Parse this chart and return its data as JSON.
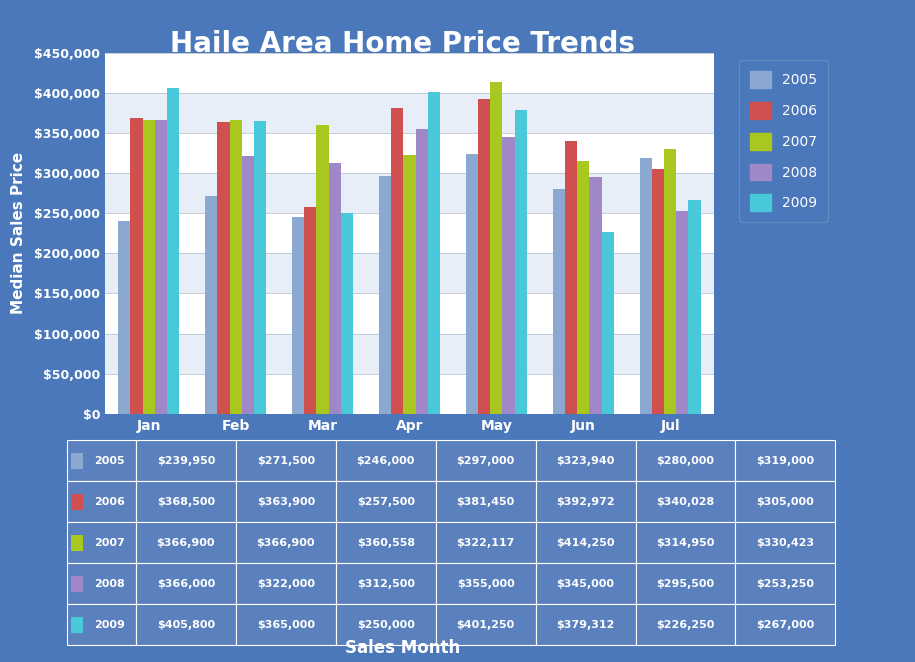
{
  "title": "Haile Area Home Price Trends",
  "xlabel": "Sales Month",
  "ylabel": "Median Sales Price",
  "background_color": "#4A78BB",
  "plot_bg_color": "#FFFFFF",
  "months": [
    "Jan",
    "Feb",
    "Mar",
    "Apr",
    "May",
    "Jun",
    "Jul"
  ],
  "years": [
    "2005",
    "2006",
    "2007",
    "2008",
    "2009"
  ],
  "bar_colors": [
    "#8BA8D0",
    "#D05050",
    "#A8C820",
    "#A088C8",
    "#48C8D8"
  ],
  "legend_colors": [
    "#8BA8D0",
    "#D05050",
    "#A8C820",
    "#A088C8",
    "#48C8D8"
  ],
  "data": {
    "2005": [
      239950,
      271500,
      246000,
      297000,
      323940,
      280000,
      319000
    ],
    "2006": [
      368500,
      363900,
      257500,
      381450,
      392972,
      340028,
      305000
    ],
    "2007": [
      366900,
      366900,
      360558,
      322117,
      414250,
      314950,
      330423
    ],
    "2008": [
      366000,
      322000,
      312500,
      355000,
      345000,
      295500,
      253250
    ],
    "2009": [
      405800,
      365000,
      250000,
      401250,
      379312,
      226250,
      267000
    ]
  },
  "table_data": {
    "2005": [
      "$239,950",
      "$271,500",
      "$246,000",
      "$297,000",
      "$323,940",
      "$280,000",
      "$319,000"
    ],
    "2006": [
      "$368,500",
      "$363,900",
      "$257,500",
      "$381,450",
      "$392,972",
      "$340,028",
      "$305,000"
    ],
    "2007": [
      "$366,900",
      "$366,900",
      "$360,558",
      "$322,117",
      "$414,250",
      "$314,950",
      "$330,423"
    ],
    "2008": [
      "$366,000",
      "$322,000",
      "$312,500",
      "$355,000",
      "$345,000",
      "$295,500",
      "$253,250"
    ],
    "2009": [
      "$405,800",
      "$365,000",
      "$250,000",
      "$401,250",
      "$379,312",
      "$226,250",
      "$267,000"
    ]
  },
  "ylim": [
    0,
    450000
  ],
  "yticks": [
    0,
    50000,
    100000,
    150000,
    200000,
    250000,
    300000,
    350000,
    400000,
    450000
  ],
  "title_fontsize": 20,
  "axis_label_fontsize": 11,
  "tick_fontsize": 9,
  "table_fontsize": 8,
  "legend_fontsize": 10,
  "stripe_colors": [
    "#FFFFFF",
    "#E8EEF8"
  ],
  "cell_bg": "#5A80BE",
  "border_color": "#FFFFFF"
}
